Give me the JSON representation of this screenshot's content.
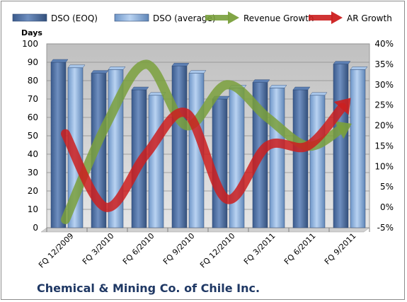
{
  "company_name": "Chemical & Mining Co. of Chile Inc.",
  "chart_data": {
    "type": "bar",
    "categories": [
      "FQ 12/2009",
      "FQ 3/2010",
      "FQ 6/2010",
      "FQ 9/2010",
      "FQ 12/2010",
      "FQ 3/2011",
      "FQ 6/2011",
      "FQ 9/2011"
    ],
    "y_left": {
      "title": "Days",
      "min": 0,
      "max": 100,
      "step": 10
    },
    "y_right": {
      "min": -5,
      "max": 40,
      "step": 5,
      "unit": "%"
    },
    "legend_position": "top",
    "grid": true,
    "series": [
      {
        "name": "DSO (EOQ)",
        "type": "bar",
        "axis": "left",
        "color": "#4a6ea0",
        "values": [
          90,
          84,
          75,
          88,
          70,
          79,
          75,
          89
        ]
      },
      {
        "name": "DSO (average)",
        "type": "bar",
        "axis": "left",
        "color": "#8eb3e0",
        "values": [
          87,
          86,
          72,
          84,
          76,
          76,
          72,
          86
        ]
      },
      {
        "name": "Revenue Growth",
        "type": "line",
        "axis": "right",
        "color": "#7aa03c",
        "values": [
          -3,
          20,
          35,
          20,
          30,
          22,
          15,
          20
        ]
      },
      {
        "name": "AR Growth",
        "type": "line",
        "axis": "right",
        "color": "#cc1f1f",
        "values": [
          18,
          0,
          13,
          23,
          2,
          15,
          15,
          26
        ]
      }
    ]
  }
}
